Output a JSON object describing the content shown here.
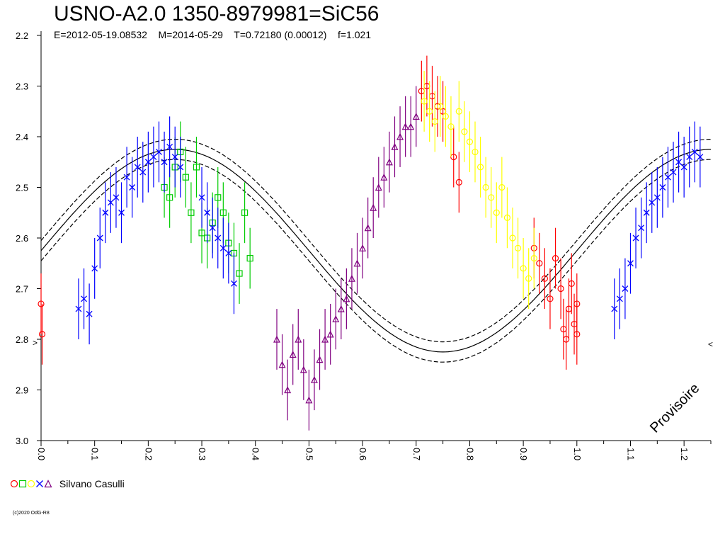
{
  "title": "USNO-A2.0 1350-8979981=SiC56",
  "subtitle": "E=2012-05-19.08532    M=2014-05-29    T=0.72180 (0.00012)    f=1.021",
  "watermark": "Provisoire",
  "copyright": "(c)2020 OdG-R8",
  "legend": {
    "observer": "Silvano Casulli",
    "markers": [
      {
        "shape": "circle",
        "color": "#ff0000"
      },
      {
        "shape": "square",
        "color": "#00cc00"
      },
      {
        "shape": "circle",
        "color": "#ffff00"
      },
      {
        "shape": "cross",
        "color": "#0000ff"
      },
      {
        "shape": "triangle",
        "color": "#800080"
      }
    ]
  },
  "chart_data": {
    "type": "scatter",
    "xlim": [
      0.0,
      1.25
    ],
    "ylim": [
      3.0,
      2.2
    ],
    "x_ticks": [
      "0.0",
      "0.1",
      "0.2",
      "0.3",
      "0.4",
      "0.5",
      "0.6",
      "0.7",
      "0.8",
      "0.9",
      "1.0",
      "1.1",
      "1.2"
    ],
    "y_ticks": [
      "2.2",
      "2.3",
      "2.4",
      "2.5",
      "2.6",
      "2.7",
      "2.8",
      "2.9",
      "3.0"
    ],
    "model_curve": {
      "mean": 2.625,
      "amplitude": 0.2,
      "max_phase": 0.25,
      "envelope": 0.02
    },
    "series": [
      {
        "color": "#ff0000",
        "marker": "circle",
        "x": [
          0.0,
          0.002,
          0.71,
          0.72,
          0.73,
          0.74,
          0.75,
          0.77,
          0.78,
          0.92,
          0.93,
          0.94,
          0.95,
          0.96,
          0.97,
          0.975,
          0.98,
          0.985,
          0.99,
          0.995,
          1.0,
          1.0
        ],
        "y": [
          2.73,
          2.79,
          2.31,
          2.3,
          2.32,
          2.34,
          2.35,
          2.44,
          2.49,
          2.62,
          2.65,
          2.68,
          2.72,
          2.64,
          2.7,
          2.78,
          2.8,
          2.74,
          2.69,
          2.77,
          2.79,
          2.73
        ]
      },
      {
        "color": "#00cc00",
        "marker": "square",
        "x": [
          0.23,
          0.24,
          0.25,
          0.26,
          0.27,
          0.28,
          0.29,
          0.3,
          0.31,
          0.32,
          0.33,
          0.34,
          0.35,
          0.36,
          0.37,
          0.38,
          0.39
        ],
        "y": [
          2.5,
          2.52,
          2.46,
          2.43,
          2.48,
          2.55,
          2.46,
          2.59,
          2.6,
          2.57,
          2.52,
          2.55,
          2.61,
          2.63,
          2.67,
          2.55,
          2.64
        ]
      },
      {
        "color": "#ffff00",
        "marker": "circle",
        "x": [
          0.715,
          0.725,
          0.735,
          0.745,
          0.755,
          0.765,
          0.78,
          0.79,
          0.8,
          0.81,
          0.82,
          0.83,
          0.84,
          0.85,
          0.86,
          0.87,
          0.88,
          0.89,
          0.9,
          0.91,
          0.92
        ],
        "y": [
          2.33,
          2.35,
          2.37,
          2.34,
          2.36,
          2.38,
          2.35,
          2.39,
          2.41,
          2.43,
          2.46,
          2.5,
          2.52,
          2.55,
          2.5,
          2.56,
          2.6,
          2.62,
          2.66,
          2.68,
          2.64
        ]
      },
      {
        "color": "#0000ff",
        "marker": "cross",
        "x": [
          0.07,
          0.08,
          0.09,
          0.1,
          0.11,
          0.12,
          0.13,
          0.14,
          0.15,
          0.16,
          0.17,
          0.18,
          0.19,
          0.2,
          0.21,
          0.22,
          0.23,
          0.24,
          0.25,
          0.26,
          0.3,
          0.31,
          0.32,
          0.33,
          0.34,
          0.35,
          0.36,
          1.07,
          1.08,
          1.09,
          1.1,
          1.11,
          1.12,
          1.13,
          1.14,
          1.15,
          1.16,
          1.17,
          1.18,
          1.19,
          1.2,
          1.21,
          1.22,
          1.23
        ],
        "y": [
          2.74,
          2.72,
          2.75,
          2.66,
          2.6,
          2.55,
          2.53,
          2.52,
          2.55,
          2.48,
          2.5,
          2.46,
          2.47,
          2.45,
          2.44,
          2.43,
          2.45,
          2.42,
          2.44,
          2.46,
          2.52,
          2.55,
          2.58,
          2.6,
          2.62,
          2.63,
          2.69,
          2.74,
          2.72,
          2.7,
          2.65,
          2.6,
          2.58,
          2.55,
          2.53,
          2.52,
          2.5,
          2.48,
          2.47,
          2.45,
          2.46,
          2.44,
          2.43,
          2.44
        ]
      },
      {
        "color": "#800080",
        "marker": "triangle",
        "x": [
          0.44,
          0.45,
          0.46,
          0.47,
          0.48,
          0.49,
          0.5,
          0.51,
          0.52,
          0.53,
          0.54,
          0.55,
          0.56,
          0.57,
          0.58,
          0.59,
          0.6,
          0.61,
          0.62,
          0.63,
          0.64,
          0.65,
          0.66,
          0.67,
          0.68,
          0.69,
          0.7
        ],
        "y": [
          2.8,
          2.85,
          2.9,
          2.83,
          2.8,
          2.86,
          2.92,
          2.88,
          2.84,
          2.8,
          2.79,
          2.76,
          2.74,
          2.72,
          2.68,
          2.65,
          2.62,
          2.58,
          2.54,
          2.5,
          2.48,
          2.45,
          2.42,
          2.4,
          2.38,
          2.38,
          2.36
        ]
      }
    ]
  }
}
